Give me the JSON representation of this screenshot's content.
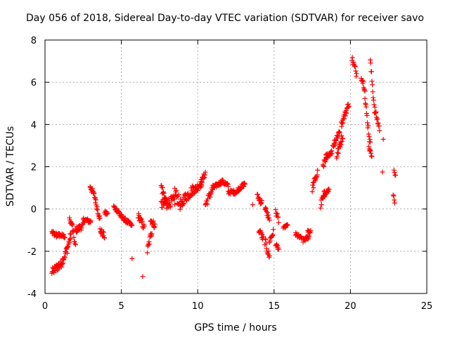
{
  "chart_data": {
    "type": "scatter",
    "title": "Day 056 of 2018, Sidereal Day-to-day VTEC variation (SDTVAR) for receiver savo",
    "xlabel": "GPS time / hours",
    "ylabel": "SDTVAR / TECUs",
    "xlim": [
      0,
      25
    ],
    "ylim": [
      -4,
      8
    ],
    "xticks": [
      0,
      5,
      10,
      15,
      20,
      25
    ],
    "yticks": [
      -4,
      -2,
      0,
      2,
      4,
      6,
      8
    ],
    "grid": true,
    "marker": "+",
    "color": "#ff0000",
    "series": [
      {
        "name": "SDTVAR",
        "segments": [
          {
            "x": [
              0.45,
              0.75
            ],
            "y": [
              -1.1,
              -1.3
            ],
            "noise": 0.1
          },
          {
            "x": [
              0.75,
              1.3
            ],
            "y": [
              -1.2,
              -1.3
            ],
            "noise": 0.1
          },
          {
            "x": [
              0.45,
              1.0
            ],
            "y": [
              -3.0,
              -2.6
            ],
            "noise": 0.2
          },
          {
            "x": [
              1.0,
              1.45
            ],
            "y": [
              -2.7,
              -1.9
            ],
            "noise": 0.2
          },
          {
            "x": [
              1.45,
              1.7
            ],
            "y": [
              -1.9,
              -1.2
            ],
            "noise": 0.2
          },
          {
            "x": [
              1.6,
              1.8
            ],
            "y": [
              -0.5,
              -0.8
            ],
            "noise": 0.1
          },
          {
            "x": [
              1.8,
              2.0
            ],
            "y": [
              -1.0,
              -1.8
            ],
            "noise": 0.15
          },
          {
            "x": [
              2.0,
              2.5
            ],
            "y": [
              -1.0,
              -0.8
            ],
            "noise": 0.15
          },
          {
            "x": [
              2.5,
              3.0
            ],
            "y": [
              -0.5,
              -0.6
            ],
            "noise": 0.1
          },
          {
            "x": [
              2.95,
              3.3
            ],
            "y": [
              1.1,
              0.5
            ],
            "noise": 0.15
          },
          {
            "x": [
              3.3,
              3.6
            ],
            "y": [
              0.4,
              -0.5
            ],
            "noise": 0.15
          },
          {
            "x": [
              3.6,
              3.9
            ],
            "y": [
              -1.0,
              -1.3
            ],
            "noise": 0.15
          },
          {
            "x": [
              3.9,
              4.1
            ],
            "y": [
              -0.2,
              -0.2
            ],
            "noise": 0.1
          },
          {
            "x": [
              4.5,
              4.9
            ],
            "y": [
              0.1,
              -0.2
            ],
            "noise": 0.1
          },
          {
            "x": [
              4.9,
              5.7
            ],
            "y": [
              -0.3,
              -0.8
            ],
            "noise": 0.1
          },
          {
            "x": [
              5.7,
              5.7
            ],
            "y": [
              -2.35,
              -2.35
            ],
            "noise": 0
          },
          {
            "x": [
              6.1,
              6.5
            ],
            "y": [
              -0.3,
              -0.9
            ],
            "noise": 0.15
          },
          {
            "x": [
              6.4,
              6.4
            ],
            "y": [
              -3.2,
              -3.2
            ],
            "noise": 0
          },
          {
            "x": [
              6.7,
              7.0
            ],
            "y": [
              -2.0,
              -1.0
            ],
            "noise": 0.2
          },
          {
            "x": [
              6.9,
              7.2
            ],
            "y": [
              -0.5,
              -0.8
            ],
            "noise": 0.15
          },
          {
            "x": [
              7.6,
              8.0
            ],
            "y": [
              1.1,
              0.2
            ],
            "noise": 0.25
          },
          {
            "x": [
              7.6,
              8.5
            ],
            "y": [
              0.2,
              0.4
            ],
            "noise": 0.25
          },
          {
            "x": [
              8.5,
              9.0
            ],
            "y": [
              0.8,
              0.0
            ],
            "noise": 0.3
          },
          {
            "x": [
              9.0,
              9.8
            ],
            "y": [
              0.4,
              1.0
            ],
            "noise": 0.25
          },
          {
            "x": [
              9.8,
              10.3
            ],
            "y": [
              0.9,
              1.3
            ],
            "noise": 0.2
          },
          {
            "x": [
              10.2,
              10.5
            ],
            "y": [
              1.2,
              1.7
            ],
            "noise": 0.15
          },
          {
            "x": [
              10.5,
              11.0
            ],
            "y": [
              0.2,
              1.0
            ],
            "noise": 0.2
          },
          {
            "x": [
              11.0,
              11.6
            ],
            "y": [
              1.0,
              1.3
            ],
            "noise": 0.1
          },
          {
            "x": [
              11.6,
              12.0
            ],
            "y": [
              1.3,
              1.1
            ],
            "noise": 0.1
          },
          {
            "x": [
              12.0,
              12.6
            ],
            "y": [
              0.8,
              0.8
            ],
            "noise": 0.1
          },
          {
            "x": [
              12.6,
              13.1
            ],
            "y": [
              0.9,
              1.2
            ],
            "noise": 0.1
          },
          {
            "x": [
              13.6,
              13.6
            ],
            "y": [
              0.2,
              0.2
            ],
            "noise": 0
          },
          {
            "x": [
              13.9,
              14.2
            ],
            "y": [
              0.6,
              0.3
            ],
            "noise": 0.15
          },
          {
            "x": [
              14.0,
              14.3
            ],
            "y": [
              -1.0,
              -1.4
            ],
            "noise": 0.15
          },
          {
            "x": [
              14.4,
              14.7
            ],
            "y": [
              0.1,
              -0.6
            ],
            "noise": 0.15
          },
          {
            "x": [
              14.4,
              14.7
            ],
            "y": [
              -1.5,
              -2.3
            ],
            "noise": 0.2
          },
          {
            "x": [
              14.7,
              14.95
            ],
            "y": [
              -1.5,
              -1.1
            ],
            "noise": 0.15
          },
          {
            "x": [
              15.1,
              15.3
            ],
            "y": [
              -0.1,
              -0.5
            ],
            "noise": 0.15
          },
          {
            "x": [
              15.1,
              15.3
            ],
            "y": [
              -1.7,
              -1.9
            ],
            "noise": 0.1
          },
          {
            "x": [
              15.6,
              15.9
            ],
            "y": [
              -0.9,
              -0.75
            ],
            "noise": 0.05
          },
          {
            "x": [
              16.4,
              16.8
            ],
            "y": [
              -1.2,
              -1.4
            ],
            "noise": 0.1
          },
          {
            "x": [
              16.9,
              17.3
            ],
            "y": [
              -1.5,
              -1.3
            ],
            "noise": 0.1
          },
          {
            "x": [
              17.2,
              17.4
            ],
            "y": [
              -1.0,
              -1.1
            ],
            "noise": 0.1
          },
          {
            "x": [
              17.5,
              17.85
            ],
            "y": [
              1.0,
              1.7
            ],
            "noise": 0.2
          },
          {
            "x": [
              18.05,
              18.3
            ],
            "y": [
              0.2,
              0.7
            ],
            "noise": 0.2
          },
          {
            "x": [
              18.2,
              18.6
            ],
            "y": [
              0.6,
              0.9
            ],
            "noise": 0.1
          },
          {
            "x": [
              18.2,
              18.5
            ],
            "y": [
              2.1,
              2.4
            ],
            "noise": 0.15
          },
          {
            "x": [
              18.4,
              18.8
            ],
            "y": [
              2.5,
              2.7
            ],
            "noise": 0.1
          },
          {
            "x": [
              18.85,
              19.3
            ],
            "y": [
              3.0,
              3.7
            ],
            "noise": 0.2
          },
          {
            "x": [
              19.1,
              19.5
            ],
            "y": [
              2.5,
              3.5
            ],
            "noise": 0.2
          },
          {
            "x": [
              19.4,
              19.9
            ],
            "y": [
              4.0,
              5.0
            ],
            "noise": 0.15
          },
          {
            "x": [
              20.1,
              20.4
            ],
            "y": [
              7.1,
              6.4
            ],
            "noise": 0.2
          },
          {
            "x": [
              20.7,
              20.95
            ],
            "y": [
              6.3,
              5.7
            ],
            "noise": 0.15
          },
          {
            "x": [
              20.95,
              21.3
            ],
            "y": [
              5.2,
              3.0
            ],
            "noise": 0.2
          },
          {
            "x": [
              21.2,
              21.4
            ],
            "y": [
              3.0,
              2.5
            ],
            "noise": 0.1
          },
          {
            "x": [
              21.3,
              21.6
            ],
            "y": [
              7.0,
              4.5
            ],
            "noise": 0.2
          },
          {
            "x": [
              21.6,
              21.9
            ],
            "y": [
              4.7,
              3.8
            ],
            "noise": 0.15
          },
          {
            "x": [
              22.15,
              22.15
            ],
            "y": [
              3.3,
              3.3
            ],
            "noise": 0
          },
          {
            "x": [
              22.1,
              22.1
            ],
            "y": [
              1.75,
              1.75
            ],
            "noise": 0
          },
          {
            "x": [
              22.85,
              22.95
            ],
            "y": [
              1.9,
              1.6
            ],
            "noise": 0.1
          },
          {
            "x": [
              22.8,
              22.9
            ],
            "y": [
              0.7,
              0.2
            ],
            "noise": 0.1
          }
        ]
      }
    ]
  }
}
